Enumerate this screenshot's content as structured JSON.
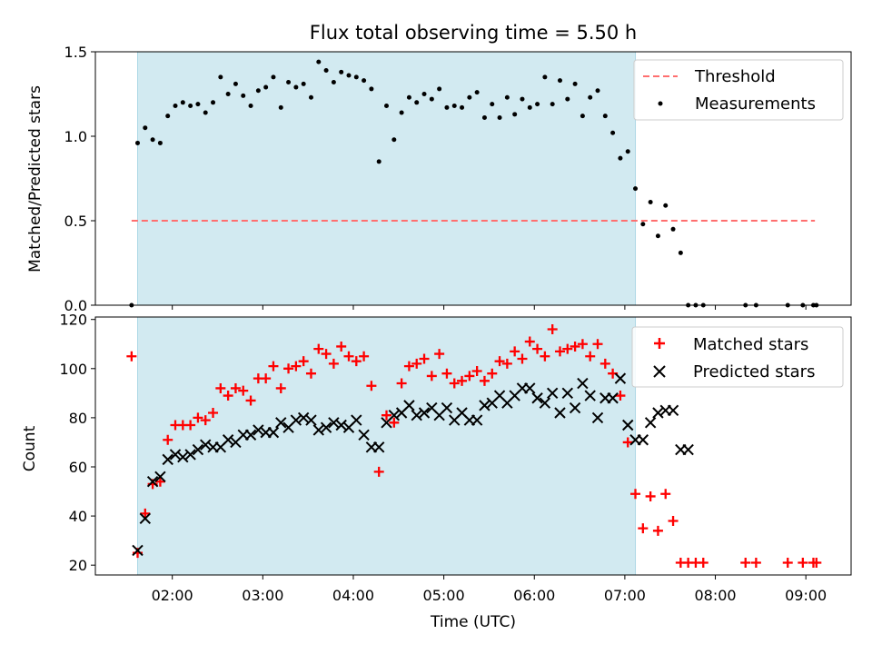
{
  "title": "Flux total observing time = 5.50 h",
  "xlabel": "Time (UTC)",
  "colors": {
    "shade": "#add8e6",
    "threshold": "#ff6f6f",
    "measurement": "#000000",
    "matched": "#ff0000",
    "predicted": "#000000"
  },
  "chart_data": [
    {
      "type": "scatter",
      "ylabel": "Matched/Predicted stars",
      "xlim": [
        "01:09",
        "09:30"
      ],
      "ylim": [
        0,
        1.5
      ],
      "yticks": [
        "0.0",
        "0.5",
        "1.0",
        "1.5"
      ],
      "xticks": [],
      "observing_window": [
        "01:37",
        "07:07"
      ],
      "legend": {
        "position": "top-right",
        "entries": [
          "Threshold",
          "Measurements"
        ]
      },
      "series": [
        {
          "name": "Threshold",
          "type": "line",
          "x": [
            "01:33",
            "09:06"
          ],
          "y": [
            0.5,
            0.5
          ]
        },
        {
          "name": "Measurements",
          "type": "scatter",
          "x": [
            "01:33",
            "01:37",
            "01:42",
            "01:47",
            "01:52",
            "01:57",
            "02:02",
            "02:07",
            "02:12",
            "02:17",
            "02:22",
            "02:27",
            "02:32",
            "02:37",
            "02:42",
            "02:47",
            "02:52",
            "02:57",
            "03:02",
            "03:07",
            "03:12",
            "03:17",
            "03:22",
            "03:27",
            "03:32",
            "03:37",
            "03:42",
            "03:47",
            "03:52",
            "03:57",
            "04:02",
            "04:07",
            "04:12",
            "04:17",
            "04:22",
            "04:27",
            "04:32",
            "04:37",
            "04:42",
            "04:47",
            "04:52",
            "04:57",
            "05:02",
            "05:07",
            "05:12",
            "05:17",
            "05:22",
            "05:27",
            "05:32",
            "05:37",
            "05:42",
            "05:47",
            "05:52",
            "05:57",
            "06:02",
            "06:07",
            "06:12",
            "06:17",
            "06:22",
            "06:27",
            "06:32",
            "06:37",
            "06:42",
            "06:47",
            "06:52",
            "06:57",
            "07:02",
            "07:07",
            "07:12",
            "07:17",
            "07:22",
            "07:27",
            "07:32",
            "07:37",
            "07:42",
            "07:47",
            "07:52",
            "08:20",
            "08:27",
            "08:48",
            "08:58",
            "09:05",
            "09:07"
          ],
          "y": [
            0.0,
            0.96,
            1.05,
            0.98,
            0.96,
            1.12,
            1.18,
            1.2,
            1.18,
            1.19,
            1.14,
            1.2,
            1.35,
            1.25,
            1.31,
            1.24,
            1.18,
            1.27,
            1.29,
            1.35,
            1.17,
            1.32,
            1.29,
            1.31,
            1.23,
            1.44,
            1.39,
            1.32,
            1.38,
            1.36,
            1.35,
            1.33,
            1.28,
            0.85,
            1.18,
            0.98,
            1.14,
            1.23,
            1.2,
            1.25,
            1.22,
            1.28,
            1.17,
            1.18,
            1.17,
            1.23,
            1.26,
            1.11,
            1.19,
            1.11,
            1.23,
            1.13,
            1.22,
            1.17,
            1.19,
            1.35,
            1.19,
            1.33,
            1.22,
            1.31,
            1.12,
            1.23,
            1.27,
            1.12,
            1.02,
            0.87,
            0.91,
            0.69,
            0.48,
            0.61,
            0.41,
            0.59,
            0.45,
            0.31,
            0.0,
            0.0,
            0.0,
            0.0,
            0.0,
            0.0,
            0.0,
            0.0,
            0.0
          ]
        }
      ]
    },
    {
      "type": "scatter",
      "ylabel": "Count",
      "xlim": [
        "01:09",
        "09:30"
      ],
      "ylim": [
        16,
        121
      ],
      "yticks": [
        "20",
        "40",
        "60",
        "80",
        "100",
        "120"
      ],
      "xticks": [
        "02:00",
        "03:00",
        "04:00",
        "05:00",
        "06:00",
        "07:00",
        "08:00",
        "09:00"
      ],
      "observing_window": [
        "01:37",
        "07:07"
      ],
      "legend": {
        "position": "top-right",
        "entries": [
          "Matched stars",
          "Predicted stars"
        ]
      },
      "series": [
        {
          "name": "Matched stars",
          "type": "scatter",
          "marker": "+",
          "x": [
            "01:33",
            "01:37",
            "01:42",
            "01:47",
            "01:52",
            "01:57",
            "02:02",
            "02:07",
            "02:12",
            "02:17",
            "02:22",
            "02:27",
            "02:32",
            "02:37",
            "02:42",
            "02:47",
            "02:52",
            "02:57",
            "03:02",
            "03:07",
            "03:12",
            "03:17",
            "03:22",
            "03:27",
            "03:32",
            "03:37",
            "03:42",
            "03:47",
            "03:52",
            "03:57",
            "04:02",
            "04:07",
            "04:12",
            "04:17",
            "04:22",
            "04:27",
            "04:32",
            "04:37",
            "04:42",
            "04:47",
            "04:52",
            "04:57",
            "05:02",
            "05:07",
            "05:12",
            "05:17",
            "05:22",
            "05:27",
            "05:32",
            "05:37",
            "05:42",
            "05:47",
            "05:52",
            "05:57",
            "06:02",
            "06:07",
            "06:12",
            "06:17",
            "06:22",
            "06:27",
            "06:32",
            "06:37",
            "06:42",
            "06:47",
            "06:52",
            "06:57",
            "07:02",
            "07:07",
            "07:12",
            "07:17",
            "07:22",
            "07:27",
            "07:32",
            "07:37",
            "07:42",
            "07:47",
            "07:52",
            "08:20",
            "08:27",
            "08:48",
            "08:58",
            "09:05",
            "09:07"
          ],
          "y": [
            105,
            25,
            41,
            53,
            54,
            71,
            77,
            77,
            77,
            80,
            79,
            82,
            92,
            89,
            92,
            91,
            87,
            96,
            96,
            101,
            92,
            100,
            101,
            103,
            98,
            108,
            106,
            102,
            109,
            105,
            103,
            105,
            93,
            58,
            81,
            78,
            94,
            101,
            102,
            104,
            97,
            106,
            98,
            94,
            95,
            97,
            99,
            95,
            98,
            103,
            102,
            107,
            104,
            111,
            108,
            105,
            116,
            107,
            108,
            109,
            110,
            105,
            110,
            102,
            98,
            89,
            70,
            49,
            35,
            48,
            34,
            49,
            38,
            21,
            21,
            21,
            21,
            21,
            21,
            21,
            21,
            21,
            21
          ]
        },
        {
          "name": "Predicted stars",
          "type": "scatter",
          "marker": "x",
          "x": [
            "01:37",
            "01:42",
            "01:47",
            "01:52",
            "01:57",
            "02:02",
            "02:07",
            "02:12",
            "02:17",
            "02:22",
            "02:27",
            "02:32",
            "02:37",
            "02:42",
            "02:47",
            "02:52",
            "02:57",
            "03:02",
            "03:07",
            "03:12",
            "03:17",
            "03:22",
            "03:27",
            "03:32",
            "03:37",
            "03:42",
            "03:47",
            "03:52",
            "03:57",
            "04:02",
            "04:07",
            "04:12",
            "04:17",
            "04:22",
            "04:27",
            "04:32",
            "04:37",
            "04:42",
            "04:47",
            "04:52",
            "04:57",
            "05:02",
            "05:07",
            "05:12",
            "05:17",
            "05:22",
            "05:27",
            "05:32",
            "05:37",
            "05:42",
            "05:47",
            "05:52",
            "05:57",
            "06:02",
            "06:07",
            "06:12",
            "06:17",
            "06:22",
            "06:27",
            "06:32",
            "06:37",
            "06:42",
            "06:47",
            "06:52",
            "06:57",
            "07:02",
            "07:07",
            "07:12",
            "07:17",
            "07:22",
            "07:27",
            "07:32",
            "07:37",
            "07:42"
          ],
          "y": [
            26,
            39,
            54,
            56,
            63,
            65,
            64,
            65,
            67,
            69,
            68,
            68,
            71,
            70,
            73,
            73,
            75,
            74,
            74,
            78,
            76,
            79,
            80,
            79,
            75,
            76,
            78,
            77,
            76,
            79,
            73,
            68,
            68,
            78,
            81,
            82,
            85,
            81,
            82,
            84,
            81,
            84,
            79,
            82,
            79,
            79,
            85,
            86,
            89,
            86,
            89,
            92,
            92,
            88,
            86,
            90,
            82,
            90,
            84,
            94,
            89,
            80,
            88,
            88,
            96,
            77,
            71,
            71,
            78,
            82,
            83,
            83,
            67,
            67
          ]
        }
      ]
    }
  ]
}
